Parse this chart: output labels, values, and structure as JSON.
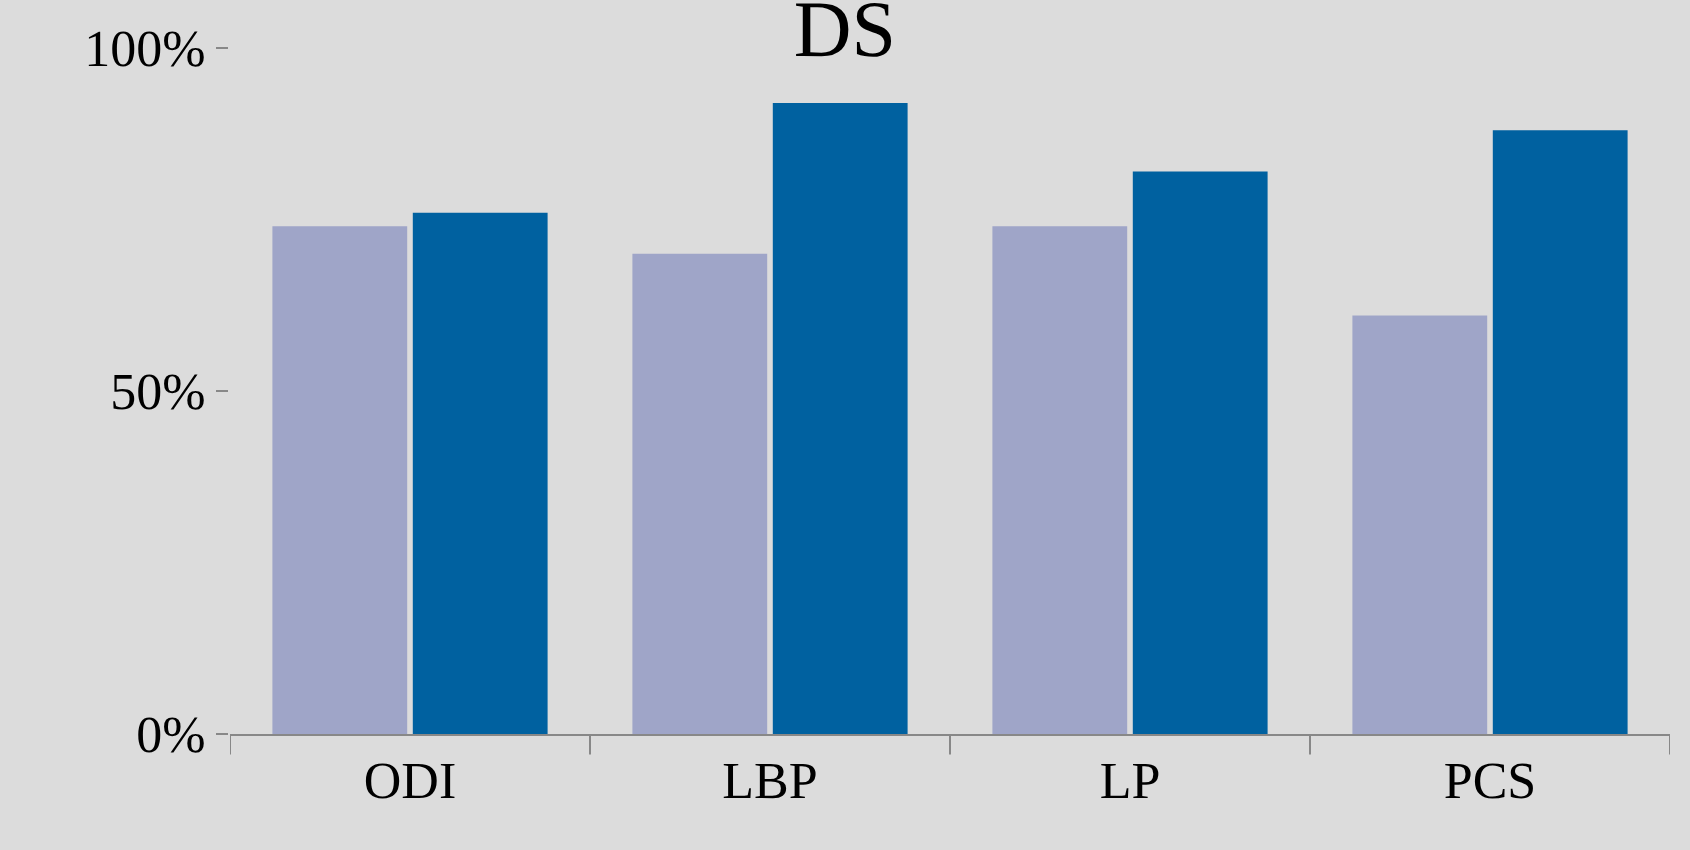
{
  "chart_data": {
    "type": "bar",
    "title": "DS",
    "categories": [
      "ODI",
      "LBP",
      "LP",
      "PCS"
    ],
    "series": [
      {
        "color": "#9fa5c8",
        "values": [
          74,
          70,
          74,
          61
        ]
      },
      {
        "color": "#0061a0",
        "values": [
          76,
          92,
          82,
          88
        ]
      }
    ],
    "ylim": [
      0,
      100
    ],
    "yticks": [
      {
        "value": 0,
        "label": "0%"
      },
      {
        "value": 50,
        "label": "50%"
      },
      {
        "value": 100,
        "label": "100%"
      }
    ],
    "grid": false
  }
}
